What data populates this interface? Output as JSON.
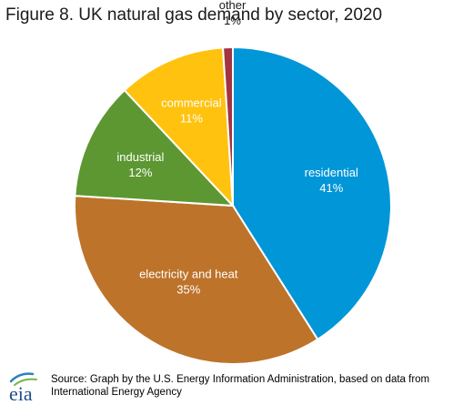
{
  "title": "Figure 8.  UK natural gas demand by sector, 2020",
  "source": "Source: Graph by the U.S. Energy Information Administration, based on data from International Energy Agency",
  "logo_text": "eia",
  "chart_data": {
    "type": "pie",
    "title": "Figure 8.  UK natural gas demand by sector, 2020",
    "slices": [
      {
        "name": "residential",
        "pct_label": "41%",
        "value": 41,
        "color": "#0096d7",
        "label_color": "#ffffff"
      },
      {
        "name": "electricity and heat",
        "pct_label": "35%",
        "value": 35,
        "color": "#bd732a",
        "label_color": "#ffffff"
      },
      {
        "name": "industrial",
        "pct_label": "12%",
        "value": 12,
        "color": "#5d9732",
        "label_color": "#ffffff"
      },
      {
        "name": "commercial",
        "pct_label": "11%",
        "value": 11,
        "color": "#ffc20e",
        "label_color": "#ffffff"
      },
      {
        "name": "other",
        "pct_label": "1%",
        "value": 1,
        "color": "#a33340",
        "label_color": "#1a1a1a"
      }
    ]
  }
}
